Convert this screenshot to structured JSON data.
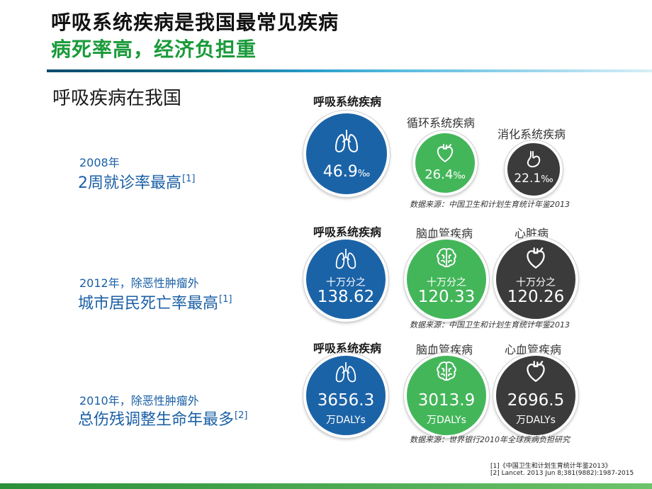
{
  "title": {
    "line1": "呼吸系统疾病是我国最常见疾病",
    "line2": "病死率高，经济负担重"
  },
  "section_title": "呼吸疾病在我国",
  "rows": [
    {
      "year_label": "2008年",
      "headline": "2周就诊率最高",
      "ref": "[1]",
      "source": "数据来源：中国卫生和计划生育统计年鉴2013",
      "items": [
        {
          "label": "呼吸系统疾病",
          "value": "46.9",
          "unit": "‰",
          "icon": "lungs-icon",
          "color": "#1b63a7"
        },
        {
          "label": "循环系统疾病",
          "value": "26.4",
          "unit": "‰",
          "icon": "heart-icon",
          "color": "#44b65a"
        },
        {
          "label": "消化系统疾病",
          "value": "22.1",
          "unit": "‰",
          "icon": "stomach-icon",
          "color": "#3b3b3b"
        }
      ]
    },
    {
      "year_label": "2012年，除恶性肿瘤外",
      "headline": "城市居民死亡率最高",
      "ref": "[1]",
      "source": "数据来源：中国卫生和计划生育统计年鉴2013",
      "items": [
        {
          "label": "呼吸系统疾病",
          "prefix": "十万分之",
          "value": "138.62",
          "icon": "lungs-icon",
          "color": "#1b63a7"
        },
        {
          "label": "脑血管疾病",
          "prefix": "十万分之",
          "value": "120.33",
          "icon": "brain-icon",
          "color": "#44b65a"
        },
        {
          "label": "心脏病",
          "prefix": "十万分之",
          "value": "120.26",
          "icon": "heart-icon",
          "color": "#3b3b3b"
        }
      ]
    },
    {
      "year_label": "2010年，除恶性肿瘤外",
      "headline": "总伤残调整生命年最多",
      "ref": "[2]",
      "source": "数据来源：世界银行2010年全球疾病负担研究",
      "items": [
        {
          "label": "呼吸系统疾病",
          "value": "3656.3",
          "suffix": "万DALYs",
          "icon": "lungs-icon",
          "color": "#1b63a7"
        },
        {
          "label": "脑血管疾病",
          "value": "3013.9",
          "suffix": "万DALYs",
          "icon": "brain-icon",
          "color": "#44b65a"
        },
        {
          "label": "心血管疾病",
          "value": "2696.5",
          "suffix": "万DALYs",
          "icon": "heart-icon",
          "color": "#3b3b3b"
        }
      ]
    }
  ],
  "references": [
    "[1]《中国卫生和计划生育统计年鉴2013》",
    "[2] Lancet. 2013 Jun 8;381(9882):1987-2015"
  ]
}
